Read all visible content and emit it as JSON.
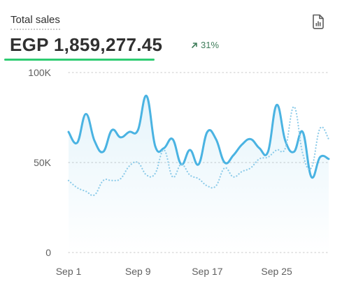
{
  "header": {
    "title": "Total sales",
    "total": "EGP 1,859,277.45",
    "change": "31%",
    "change_icon": "arrow-up-right-icon",
    "report_icon": "report-document-icon"
  },
  "chart_data": {
    "type": "line",
    "title": "",
    "xlabel": "",
    "ylabel": "",
    "ylim": [
      0,
      100000
    ],
    "y_ticks": [
      {
        "value": 0,
        "label": "0"
      },
      {
        "value": 50000,
        "label": "50K"
      },
      {
        "value": 100000,
        "label": "100K"
      }
    ],
    "x_ticks": [
      {
        "day": 1,
        "label": "Sep 1"
      },
      {
        "day": 9,
        "label": "Sep 9"
      },
      {
        "day": 17,
        "label": "Sep 17"
      },
      {
        "day": 25,
        "label": "Sep 25"
      }
    ],
    "x_range": [
      1,
      31
    ],
    "grid": "horizontal-dotted",
    "series": [
      {
        "style": "solid",
        "color": "#4ab3e2",
        "area": true,
        "x": [
          1,
          2,
          3,
          4,
          5,
          6,
          7,
          8,
          9,
          10,
          11,
          12,
          13,
          14,
          15,
          16,
          17,
          18,
          19,
          20,
          21,
          22,
          23,
          24,
          25,
          26,
          27,
          28,
          29,
          30,
          31
        ],
        "values": [
          67000,
          61000,
          77000,
          62000,
          56000,
          68000,
          64000,
          67000,
          68000,
          87000,
          59000,
          58000,
          63000,
          49000,
          57000,
          49000,
          67000,
          63000,
          50000,
          54000,
          60000,
          63000,
          58000,
          56000,
          82000,
          62000,
          56000,
          67000,
          42000,
          53000,
          52000
        ]
      },
      {
        "style": "dotted",
        "color": "#8ccbe9",
        "area": false,
        "x": [
          1,
          2,
          3,
          4,
          5,
          6,
          7,
          8,
          9,
          10,
          11,
          12,
          13,
          14,
          15,
          16,
          17,
          18,
          19,
          20,
          21,
          22,
          23,
          24,
          25,
          26,
          27,
          28,
          29,
          30,
          31
        ],
        "values": [
          40000,
          36000,
          34000,
          32000,
          40000,
          40000,
          41000,
          48000,
          50000,
          43000,
          44000,
          57000,
          42000,
          49000,
          43000,
          41000,
          37000,
          37000,
          47000,
          42000,
          45000,
          47000,
          52000,
          53000,
          57000,
          58000,
          81000,
          55000,
          47000,
          69000,
          63000
        ]
      }
    ]
  }
}
